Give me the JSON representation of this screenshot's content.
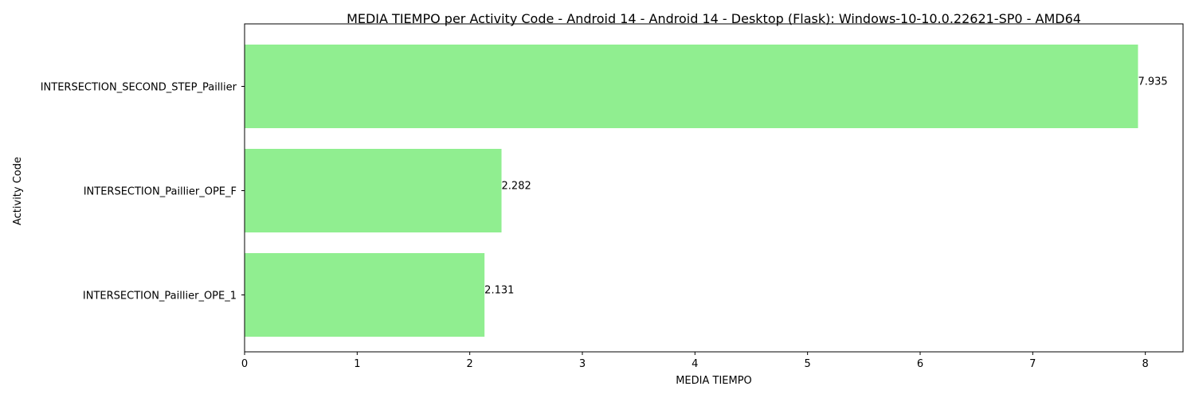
{
  "chart_data": {
    "type": "bar",
    "orientation": "horizontal",
    "title": "MEDIA TIEMPO per Activity Code - Android 14 - Android 14 - Desktop (Flask): Windows-10-10.0.22621-SP0 - AMD64",
    "xlabel": "MEDIA TIEMPO",
    "ylabel": "Activity Code",
    "categories": [
      "INTERSECTION_Paillier_OPE_1",
      "INTERSECTION_Paillier_OPE_F",
      "INTERSECTION_SECOND_STEP_Paillier"
    ],
    "values": [
      2.131,
      2.282,
      7.935
    ],
    "data_labels": [
      "2.131",
      "2.282",
      "7.935"
    ],
    "xlim": [
      0,
      8.335
    ],
    "xticks": [
      0,
      1,
      2,
      3,
      4,
      5,
      6,
      7,
      8
    ],
    "xtick_labels": [
      "0",
      "1",
      "2",
      "3",
      "4",
      "5",
      "6",
      "7",
      "8"
    ],
    "bar_color": "#90ee90",
    "grid": false
  }
}
